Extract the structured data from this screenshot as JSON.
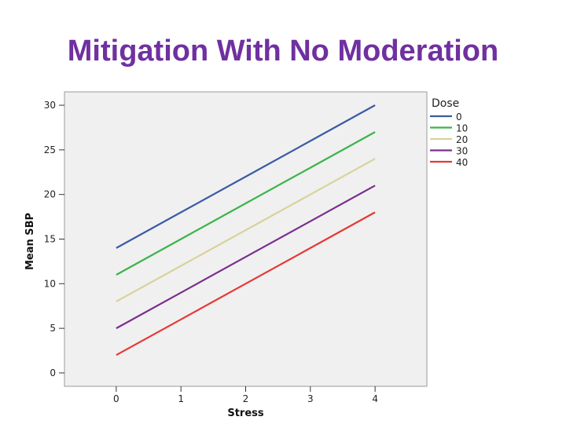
{
  "slide": {
    "title": "Mitigation With No Moderation"
  },
  "chart_data": {
    "type": "line",
    "xlabel": "Stress",
    "ylabel": "Mean SBP",
    "x": [
      0,
      1,
      2,
      3,
      4
    ],
    "x_ticks": [
      "0",
      "1",
      "2",
      "3",
      "4"
    ],
    "y_ticks": [
      "0",
      "5",
      "10",
      "15",
      "20",
      "25",
      "30"
    ],
    "xlim": [
      -0.8,
      4.8
    ],
    "ylim": [
      -1.5,
      31.5
    ],
    "grid": false,
    "plot_background": "#f0f0f0",
    "legend": {
      "title": "Dose",
      "position": "right"
    },
    "series": [
      {
        "name": "0",
        "color": "#3b5ba5",
        "values": [
          14,
          18,
          22,
          26,
          30
        ]
      },
      {
        "name": "10",
        "color": "#3cb44b",
        "values": [
          11,
          15,
          19,
          23,
          27
        ]
      },
      {
        "name": "20",
        "color": "#d8d39c",
        "values": [
          8,
          12,
          16,
          20,
          24
        ]
      },
      {
        "name": "30",
        "color": "#7b2e8e",
        "values": [
          5,
          9,
          13,
          17,
          21
        ]
      },
      {
        "name": "40",
        "color": "#e53935",
        "values": [
          2,
          6,
          10,
          14,
          18
        ]
      }
    ]
  }
}
